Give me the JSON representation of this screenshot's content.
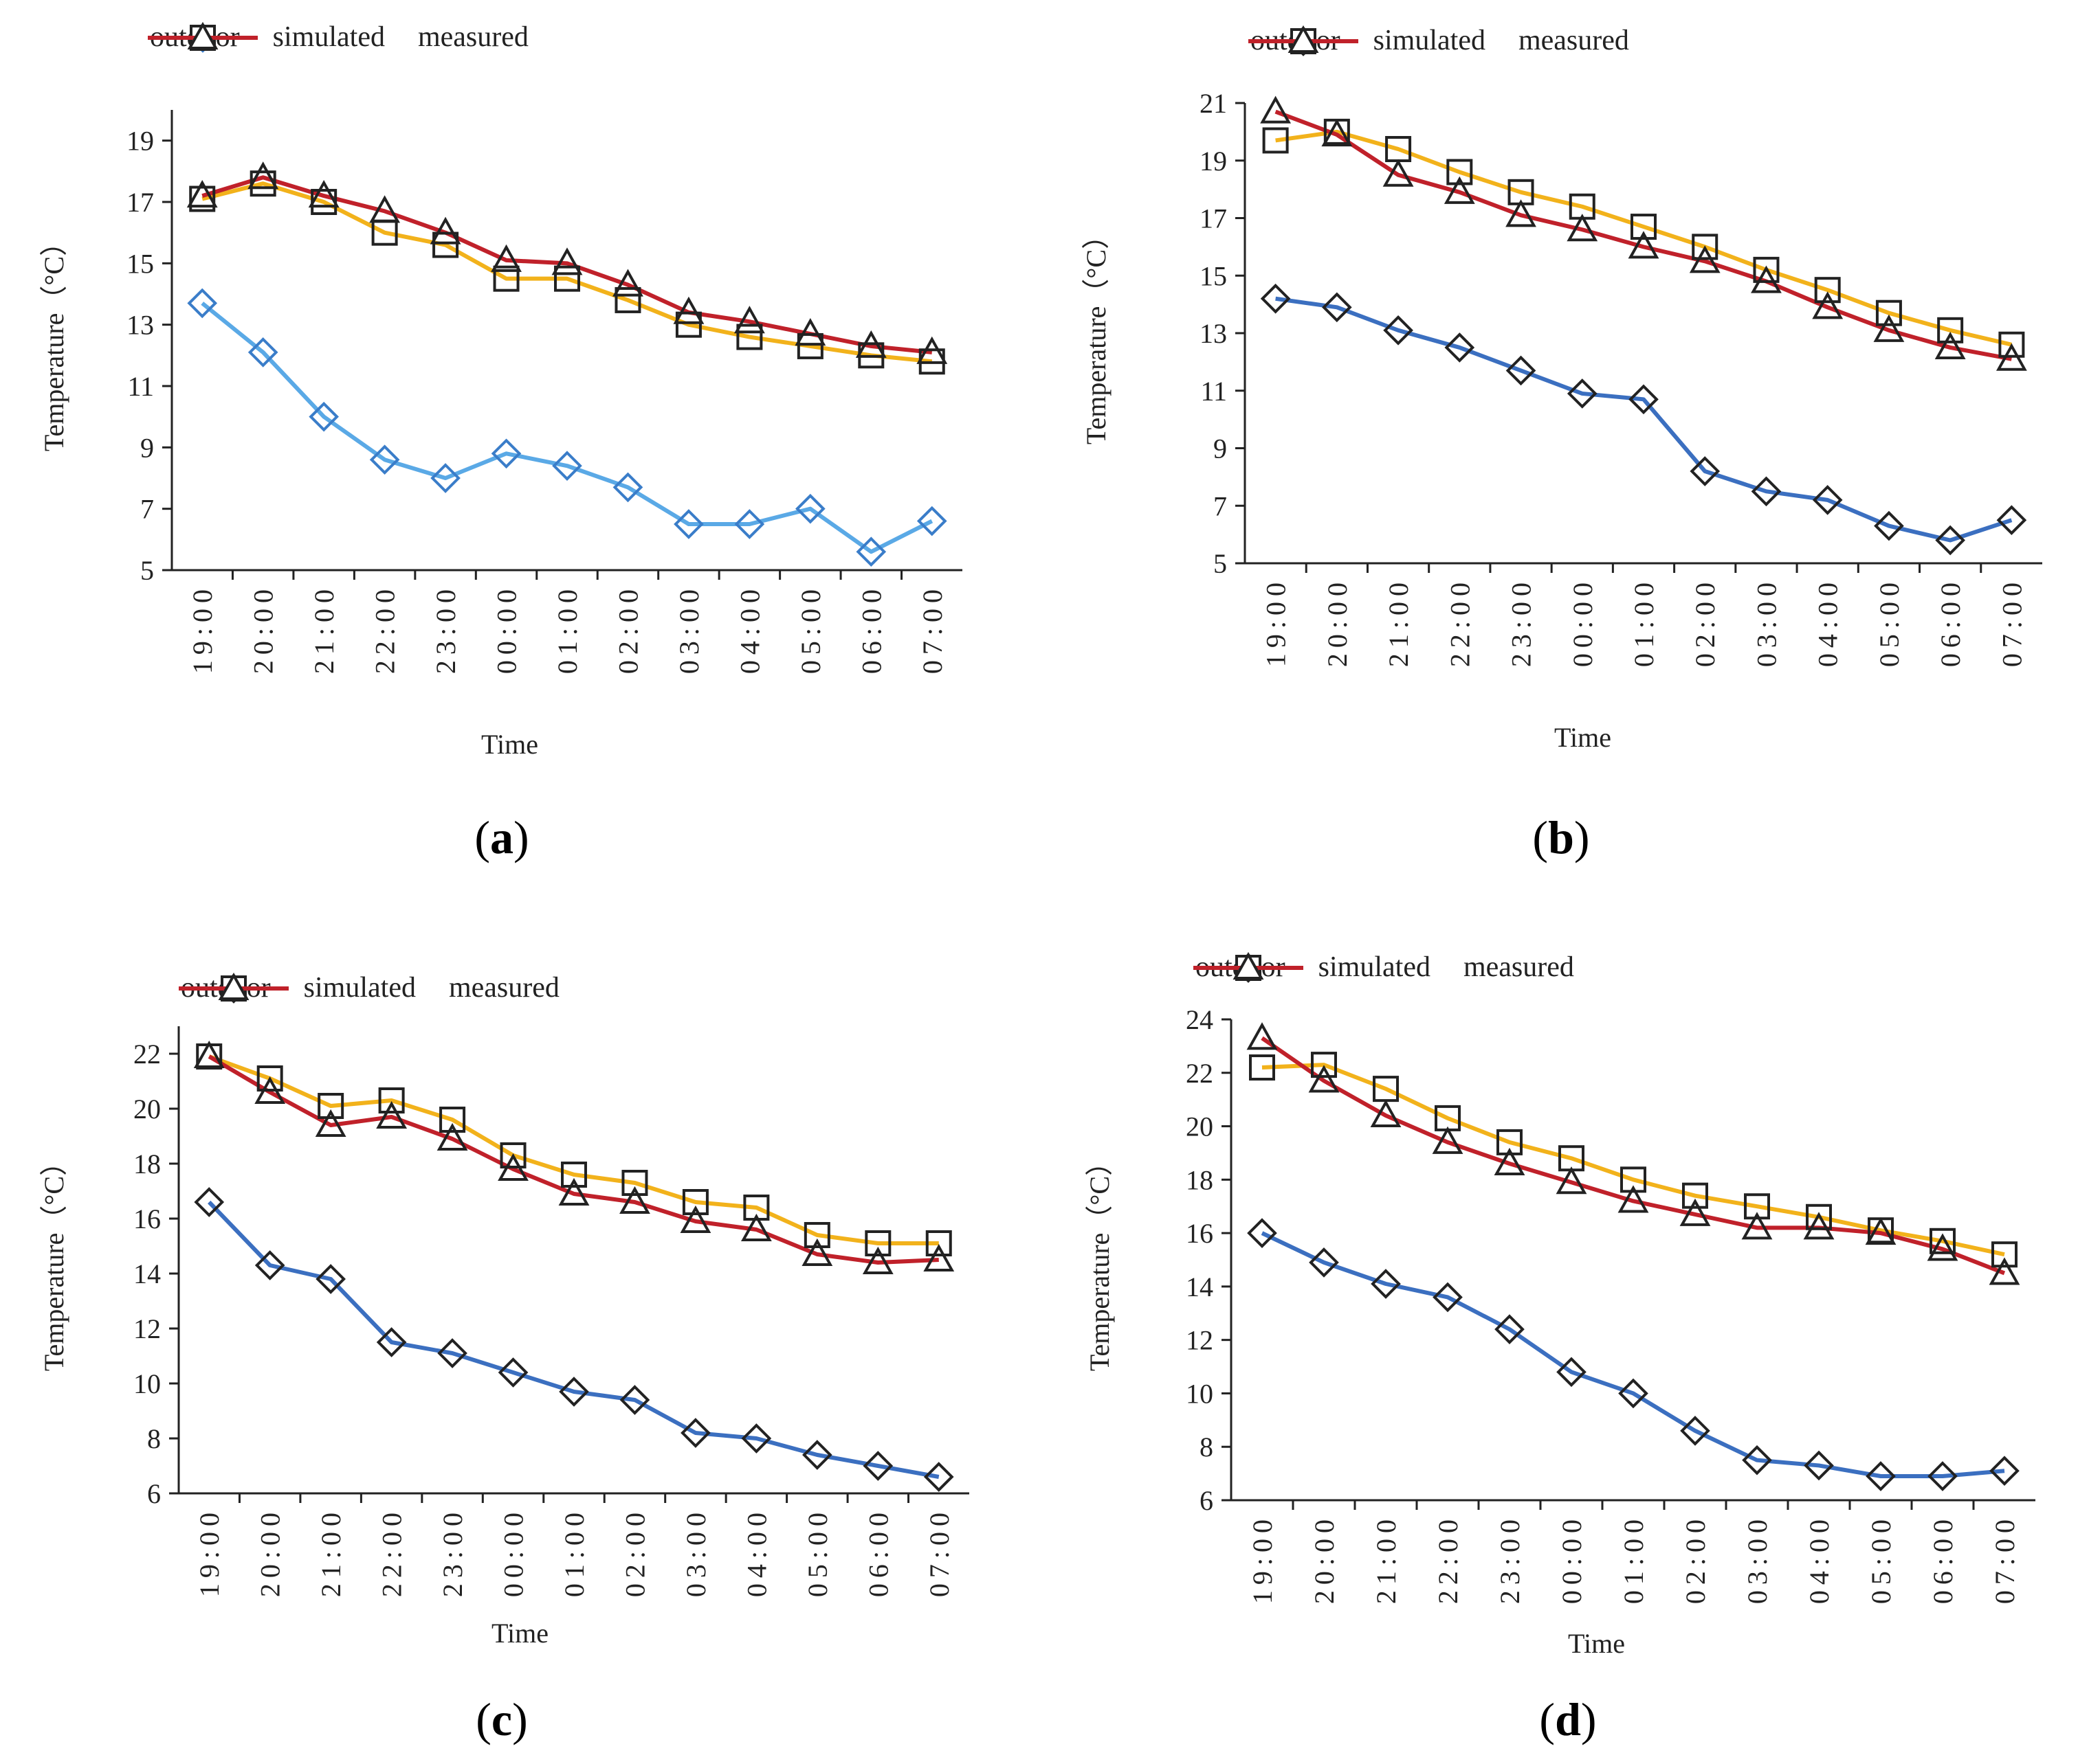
{
  "chart_data": [
    {
      "panel_label": "a",
      "type": "line",
      "categories": [
        "19:00",
        "20:00",
        "21:00",
        "22:00",
        "23:00",
        "00:00",
        "01:00",
        "02:00",
        "03:00",
        "04:00",
        "05:00",
        "06:00",
        "07:00"
      ],
      "xlabel": "Time",
      "ylabel": "Temperature（°C）",
      "ylim": [
        5,
        20
      ],
      "yticks": [
        5,
        7,
        9,
        11,
        13,
        15,
        17,
        19
      ],
      "legend_position": "top",
      "series": [
        {
          "name": "outdoor",
          "marker": "diamond",
          "color": "#5aa9e6",
          "marker_color": "#3a7dc9",
          "values": [
            13.7,
            12.1,
            10.0,
            8.6,
            8.0,
            8.8,
            8.4,
            7.7,
            6.5,
            6.5,
            7.0,
            5.6,
            6.6
          ]
        },
        {
          "name": "simulated",
          "marker": "square",
          "color": "#f2b21b",
          "marker_color": "#222222",
          "values": [
            17.1,
            17.6,
            17.0,
            16.0,
            15.6,
            14.5,
            14.5,
            13.8,
            13.0,
            12.6,
            12.3,
            12.0,
            11.8
          ]
        },
        {
          "name": "measured",
          "marker": "triangle",
          "color": "#c0212a",
          "marker_color": "#222222",
          "values": [
            17.2,
            17.8,
            17.2,
            16.7,
            16.0,
            15.1,
            15.0,
            14.3,
            13.4,
            13.1,
            12.7,
            12.3,
            12.1
          ]
        }
      ]
    },
    {
      "panel_label": "b",
      "type": "line",
      "categories": [
        "19:00",
        "20:00",
        "21:00",
        "22:00",
        "23:00",
        "00:00",
        "01:00",
        "02:00",
        "03:00",
        "04:00",
        "05:00",
        "06:00",
        "07:00"
      ],
      "xlabel": "Time",
      "ylabel": "Temperature（°C）",
      "ylim": [
        5,
        21
      ],
      "yticks": [
        5,
        7,
        9,
        11,
        13,
        15,
        17,
        19,
        21
      ],
      "legend_position": "top",
      "series": [
        {
          "name": "outdoor",
          "marker": "diamond",
          "color": "#3b6fc0",
          "marker_color": "#222222",
          "values": [
            14.2,
            13.9,
            13.1,
            12.5,
            11.7,
            10.9,
            10.7,
            8.2,
            7.5,
            7.2,
            6.3,
            5.8,
            6.5
          ]
        },
        {
          "name": "simulated",
          "marker": "square",
          "color": "#f2b21b",
          "marker_color": "#222222",
          "values": [
            19.7,
            20.0,
            19.4,
            18.6,
            17.9,
            17.4,
            16.7,
            16.0,
            15.2,
            14.5,
            13.7,
            13.1,
            12.6
          ]
        },
        {
          "name": "measured",
          "marker": "triangle",
          "color": "#c0212a",
          "marker_color": "#222222",
          "values": [
            20.7,
            19.9,
            18.5,
            17.9,
            17.1,
            16.6,
            16.0,
            15.5,
            14.8,
            13.9,
            13.1,
            12.5,
            12.1
          ]
        }
      ]
    },
    {
      "panel_label": "c",
      "type": "line",
      "categories": [
        "19:00",
        "20:00",
        "21:00",
        "22:00",
        "23:00",
        "00:00",
        "01:00",
        "02:00",
        "03:00",
        "04:00",
        "05:00",
        "06:00",
        "07:00"
      ],
      "xlabel": "Time",
      "ylabel": "Temperature（°C）",
      "ylim": [
        6,
        23
      ],
      "yticks": [
        6,
        8,
        10,
        12,
        14,
        16,
        18,
        20,
        22
      ],
      "legend_position": "top",
      "series": [
        {
          "name": "outdoor",
          "marker": "diamond",
          "color": "#3b6fc0",
          "marker_color": "#222222",
          "values": [
            16.6,
            14.3,
            13.8,
            11.5,
            11.1,
            10.4,
            9.7,
            9.4,
            8.2,
            8.0,
            7.4,
            7.0,
            6.6
          ]
        },
        {
          "name": "simulated",
          "marker": "square",
          "color": "#f2b21b",
          "marker_color": "#222222",
          "values": [
            21.9,
            21.1,
            20.1,
            20.3,
            19.6,
            18.3,
            17.6,
            17.3,
            16.6,
            16.4,
            15.4,
            15.1,
            15.1
          ]
        },
        {
          "name": "measured",
          "marker": "triangle",
          "color": "#c0212a",
          "marker_color": "#222222",
          "values": [
            21.9,
            20.6,
            19.4,
            19.7,
            18.9,
            17.8,
            16.9,
            16.6,
            15.9,
            15.6,
            14.7,
            14.4,
            14.5
          ]
        }
      ]
    },
    {
      "panel_label": "d",
      "type": "line",
      "categories": [
        "19:00",
        "20:00",
        "21:00",
        "22:00",
        "23:00",
        "00:00",
        "01:00",
        "02:00",
        "03:00",
        "04:00",
        "05:00",
        "06:00",
        "07:00"
      ],
      "xlabel": "Time",
      "ylabel": "Temperature（°C）",
      "ylim": [
        6,
        24
      ],
      "yticks": [
        6,
        8,
        10,
        12,
        14,
        16,
        18,
        20,
        22,
        24
      ],
      "legend_position": "top",
      "series": [
        {
          "name": "outdoor",
          "marker": "diamond",
          "color": "#3b6fc0",
          "marker_color": "#222222",
          "values": [
            16.0,
            14.9,
            14.1,
            13.6,
            12.4,
            10.8,
            10.0,
            8.6,
            7.5,
            7.3,
            6.9,
            6.9,
            7.1
          ]
        },
        {
          "name": "simulated",
          "marker": "square",
          "color": "#f2b21b",
          "marker_color": "#222222",
          "values": [
            22.2,
            22.3,
            21.4,
            20.3,
            19.4,
            18.8,
            18.0,
            17.4,
            17.0,
            16.6,
            16.1,
            15.7,
            15.2
          ]
        },
        {
          "name": "measured",
          "marker": "triangle",
          "color": "#c0212a",
          "marker_color": "#222222",
          "values": [
            23.3,
            21.7,
            20.4,
            19.4,
            18.6,
            17.9,
            17.2,
            16.7,
            16.2,
            16.2,
            16.0,
            15.4,
            14.5
          ]
        }
      ]
    }
  ]
}
